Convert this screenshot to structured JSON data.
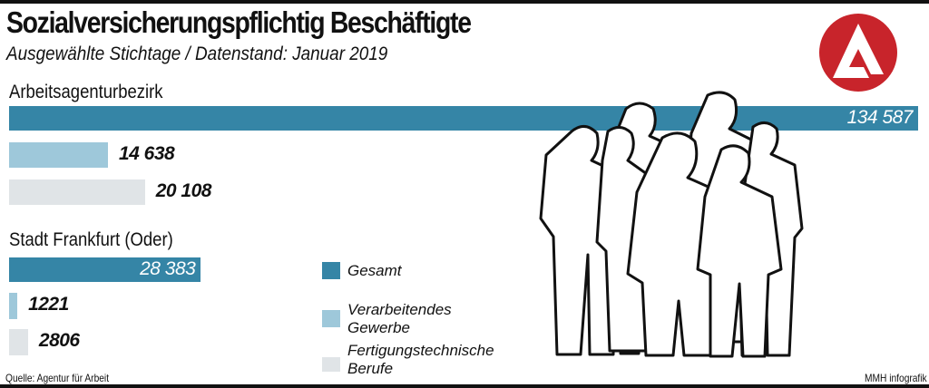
{
  "title": "Sozialversicherungspflichtig Beschäftigte",
  "subtitle": "Ausgewählte Stichtage / Datenstand: Januar 2019",
  "source": "Quelle: Agentur für Arbeit",
  "credit": "MMH infografik",
  "logo_icon": "agentur-fuer-arbeit-logo",
  "colors": {
    "Gesamt": "#3585a6",
    "Verarbeitendes Gewerbe": "#9ec8da",
    "Fertigungstechnische Berufe": "#e0e4e7",
    "logo_red": "#c8242b"
  },
  "chart_data": {
    "type": "bar",
    "orientation": "horizontal",
    "title": "Sozialversicherungspflichtig Beschäftigte",
    "subtitle": "Ausgewählte Stichtage / Datenstand: Januar 2019",
    "legend_placement": "bottom-center",
    "grid": false,
    "legend": [
      "Gesamt",
      "Verarbeitendes Gewerbe",
      "Fertigungstechnische Berufe"
    ],
    "groups": [
      {
        "label": "Arbeitsagenturbezirk",
        "values": [
          134587,
          14638,
          20108
        ],
        "labels": [
          "134 587",
          "14 638",
          "20 108"
        ]
      },
      {
        "label": "Stadt Frankfurt (Oder)",
        "values": [
          28383,
          1221,
          2806
        ],
        "labels": [
          "28 383",
          "1221",
          "2806"
        ]
      }
    ],
    "xlim": [
      0,
      134587
    ]
  }
}
